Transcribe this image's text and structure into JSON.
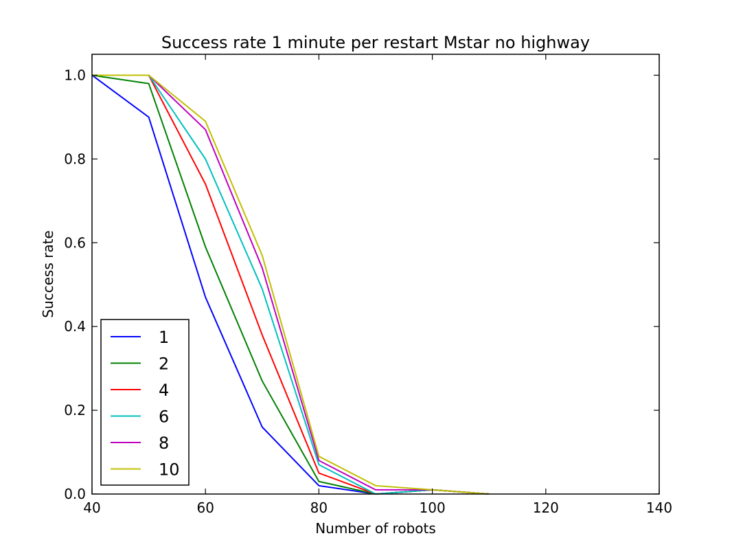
{
  "chart_data": {
    "type": "line",
    "title": "Success rate 1 minute per restart Mstar no highway",
    "xlabel": "Number of robots",
    "ylabel": "Success rate",
    "xlim": [
      40,
      140
    ],
    "ylim": [
      0.0,
      1.05
    ],
    "xticks": [
      40,
      60,
      80,
      100,
      120,
      140
    ],
    "yticks": [
      0.0,
      0.2,
      0.4,
      0.6,
      0.8,
      1.0
    ],
    "xtick_labels": [
      "40",
      "60",
      "80",
      "100",
      "120",
      "140"
    ],
    "ytick_labels": [
      "0.0",
      "0.2",
      "0.4",
      "0.6",
      "0.8",
      "1.0"
    ],
    "grid": false,
    "legend_position": "lower-left",
    "x": [
      40,
      50,
      60,
      70,
      80,
      90,
      100,
      110
    ],
    "series": [
      {
        "name": "1",
        "color": "#0000ff",
        "values": [
          1.0,
          0.9,
          0.47,
          0.16,
          0.02,
          0.0,
          0.01,
          0.0
        ]
      },
      {
        "name": "2",
        "color": "#008000",
        "values": [
          1.0,
          0.98,
          0.59,
          0.27,
          0.03,
          0.0,
          0.01,
          0.0
        ]
      },
      {
        "name": "4",
        "color": "#ff0000",
        "values": [
          1.0,
          1.0,
          0.74,
          0.38,
          0.05,
          0.0,
          0.01,
          0.0
        ]
      },
      {
        "name": "6",
        "color": "#00bfbf",
        "values": [
          1.0,
          1.0,
          0.8,
          0.49,
          0.07,
          0.0,
          0.01,
          0.0
        ]
      },
      {
        "name": "8",
        "color": "#bf00bf",
        "values": [
          1.0,
          1.0,
          0.87,
          0.54,
          0.08,
          0.01,
          0.01,
          0.0
        ]
      },
      {
        "name": "10",
        "color": "#bfbf00",
        "values": [
          1.0,
          1.0,
          0.89,
          0.57,
          0.09,
          0.02,
          0.01,
          0.0
        ]
      }
    ]
  }
}
